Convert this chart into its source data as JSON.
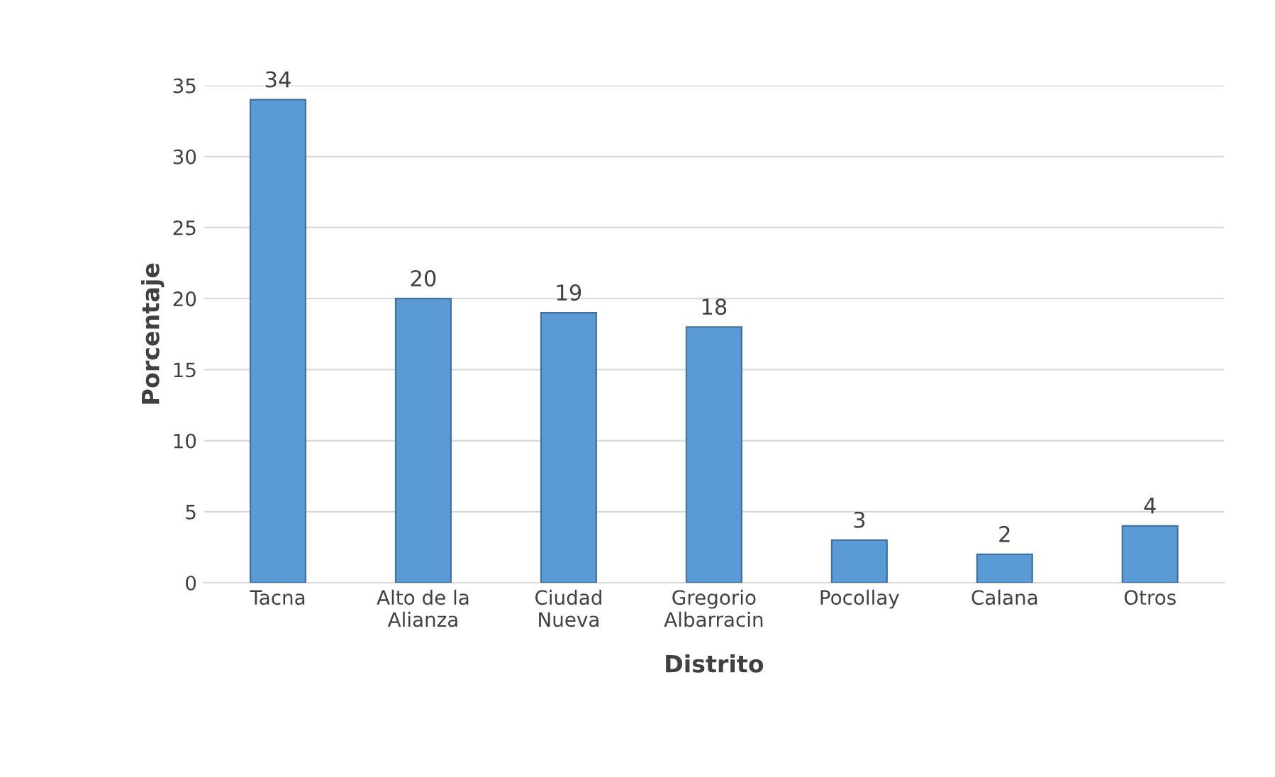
{
  "chart_data": {
    "type": "bar",
    "xlabel": "Distrito",
    "ylabel": "Porcentaje",
    "categories": [
      "Tacna",
      "Alto de la\nAlianza",
      "Ciudad\nNueva",
      "Gregorio\nAlbarracin",
      "Pocollay",
      "Calana",
      "Otros"
    ],
    "values": [
      34,
      20,
      19,
      18,
      3,
      2,
      4
    ],
    "color": "#5b9bd5",
    "ylim": [
      0,
      35
    ],
    "yticks": [
      0,
      5,
      10,
      15,
      20,
      25,
      30,
      35
    ],
    "grid": "y",
    "data_labels": true
  }
}
